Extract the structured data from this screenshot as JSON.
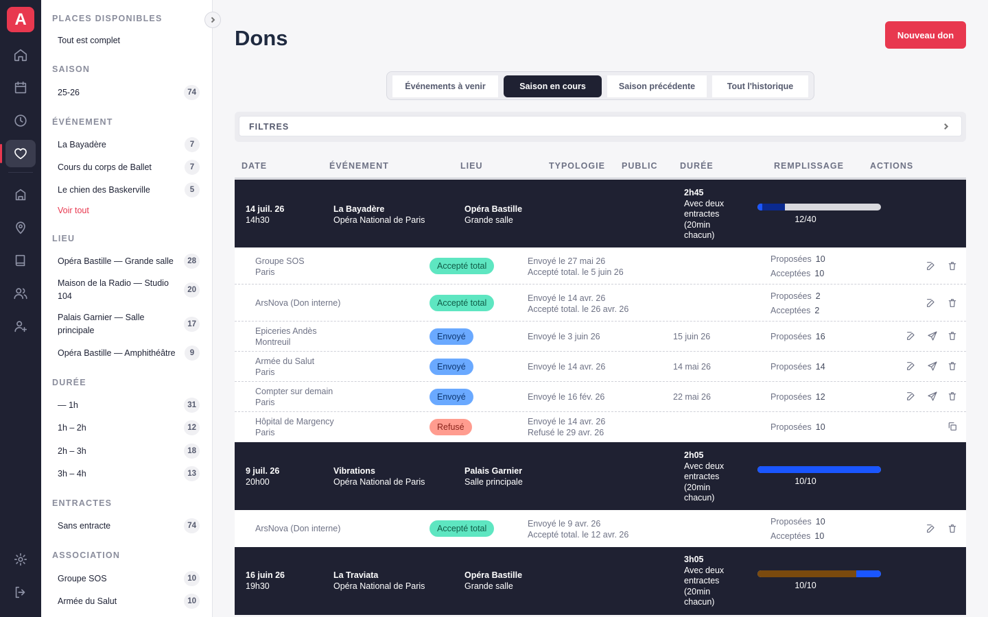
{
  "app": {
    "logo": "A"
  },
  "rail": {
    "icons": [
      "home-icon",
      "calendar-icon",
      "clock-icon",
      "heart-icon",
      "building-icon",
      "map-pin-icon",
      "book-icon",
      "users-icon",
      "user-plus-icon",
      "settings-icon",
      "logout-icon"
    ]
  },
  "filters": {
    "places": {
      "header": "PLACES DISPONIBLES",
      "items": [
        {
          "label": "Tout est complet",
          "count": ""
        }
      ]
    },
    "saison": {
      "header": "SAISON",
      "items": [
        {
          "label": "25-26",
          "count": "74"
        }
      ]
    },
    "evenement": {
      "header": "ÉVÉNEMENT",
      "items": [
        {
          "label": "La Bayadère",
          "count": "7"
        },
        {
          "label": "Cours du corps de Ballet",
          "count": "7"
        },
        {
          "label": "Le chien des Baskerville",
          "count": "5"
        }
      ],
      "see_all": "Voir tout"
    },
    "lieu": {
      "header": "LIEU",
      "items": [
        {
          "label": "Opéra Bastille — Grande salle",
          "count": "28"
        },
        {
          "label": "Maison de la Radio — Studio 104",
          "count": "20"
        },
        {
          "label": "Palais Garnier — Salle principale",
          "count": "17"
        },
        {
          "label": "Opéra Bastille — Amphithéâtre",
          "count": "9"
        }
      ]
    },
    "duree": {
      "header": "DURÉE",
      "items": [
        {
          "label": "— 1h",
          "count": "31"
        },
        {
          "label": "1h – 2h",
          "count": "12"
        },
        {
          "label": "2h – 3h",
          "count": "18"
        },
        {
          "label": "3h – 4h",
          "count": "13"
        }
      ]
    },
    "entractes": {
      "header": "ENTRACTES",
      "items": [
        {
          "label": "Sans entracte",
          "count": "74"
        }
      ]
    },
    "association": {
      "header": "ASSOCIATION",
      "items": [
        {
          "label": "Groupe SOS",
          "count": "10"
        },
        {
          "label": "Armée du Salut",
          "count": "10"
        }
      ]
    }
  },
  "page": {
    "title": "Dons",
    "new_button": "Nouveau don"
  },
  "tabs": [
    {
      "label": "Événements à venir"
    },
    {
      "label": "Saison en cours",
      "active": true
    },
    {
      "label": "Saison précédente"
    },
    {
      "label": "Tout l'historique"
    }
  ],
  "filter_bar": {
    "label": "FILTRES"
  },
  "table": {
    "headers": [
      "DATE",
      "ÉVÉNEMENT",
      "LIEU",
      "TYPOLOGIE",
      "PUBLIC",
      "DURÉE",
      "REMPLISSAGE",
      "ACTIONS"
    ],
    "events": [
      {
        "date": "14 juil. 26",
        "time": "14h30",
        "name": "La Bayadère",
        "org": "Opéra National de Paris",
        "venue": "Opéra Bastille",
        "hall": "Grande salle",
        "duration": "2h45",
        "duration_note": "Avec deux entractes (20min chacun)",
        "fill_ratio": "12/40",
        "fill_colors": [
          "#0b2a8f",
          "#1a56ff"
        ],
        "donations": [
          {
            "name": "Groupe SOS",
            "city": "Paris",
            "status": "Accepté total",
            "status_type": "accepted",
            "sent": "Envoyé le 27 mai 26",
            "accepted": "Accepté total. le 5 juin 26",
            "deadline": "",
            "proposed_label": "Proposées",
            "proposed": "10",
            "accepted_label": "Acceptées",
            "accepted_count": "10"
          },
          {
            "name": "ArsNova (Don interne)",
            "city": "",
            "status": "Accepté total",
            "status_type": "accepted",
            "sent": "Envoyé le 14 avr. 26",
            "accepted": "Accepté total. le 26 avr. 26",
            "deadline": "",
            "proposed_label": "Proposées",
            "proposed": "2",
            "accepted_label": "Acceptées",
            "accepted_count": "2"
          },
          {
            "name": "Epiceries Andès",
            "city": "Montreuil",
            "status": "Envoyé",
            "status_type": "sent",
            "sent": "Envoyé le 3 juin 26",
            "accepted": "",
            "deadline": "15 juin 26",
            "proposed_label": "Proposées",
            "proposed": "16",
            "accepted_label": "",
            "accepted_count": ""
          },
          {
            "name": "Armée du Salut",
            "city": "Paris",
            "status": "Envoyé",
            "status_type": "sent",
            "sent": "Envoyé le 14 avr. 26",
            "accepted": "",
            "deadline": "14 mai 26",
            "proposed_label": "Proposées",
            "proposed": "14",
            "accepted_label": "",
            "accepted_count": ""
          },
          {
            "name": "Compter sur demain",
            "city": "Paris",
            "status": "Envoyé",
            "status_type": "sent",
            "sent": "Envoyé le 16 fév. 26",
            "accepted": "",
            "deadline": "22 mai 26",
            "proposed_label": "Proposées",
            "proposed": "12",
            "accepted_label": "",
            "accepted_count": ""
          },
          {
            "name": "Hôpital de Margency",
            "city": "Paris",
            "status": "Refusé",
            "status_type": "refused",
            "sent": "Envoyé le 14 avr. 26",
            "accepted": "Refusé le 29 avr. 26",
            "deadline": "",
            "proposed_label": "Proposées",
            "proposed": "10",
            "accepted_label": "",
            "accepted_count": ""
          }
        ]
      },
      {
        "date": "9 juil. 26",
        "time": "20h00",
        "name": "Vibrations",
        "org": "Opéra National de Paris",
        "venue": "Palais Garnier",
        "hall": "Salle principale",
        "duration": "2h05",
        "duration_note": "Avec deux entractes (20min chacun)",
        "fill_ratio": "10/10",
        "fill_colors": [
          "#1a56ff"
        ],
        "donations": [
          {
            "name": "ArsNova (Don interne)",
            "city": "",
            "status": "Accepté total",
            "status_type": "accepted",
            "sent": "Envoyé le 9 avr. 26",
            "accepted": "Accepté total. le 12 avr. 26",
            "deadline": "",
            "proposed_label": "Proposées",
            "proposed": "10",
            "accepted_label": "Acceptées",
            "accepted_count": "10"
          }
        ]
      },
      {
        "date": "16 juin 26",
        "time": "19h30",
        "name": "La Traviata",
        "org": "Opéra National de Paris",
        "venue": "Opéra Bastille",
        "hall": "Grande salle",
        "duration": "3h05",
        "duration_note": "Avec deux entractes (20min chacun)",
        "fill_ratio": "10/10",
        "fill_colors": [
          "#7a4a0e",
          "#1a56ff"
        ],
        "donations": []
      }
    ]
  }
}
